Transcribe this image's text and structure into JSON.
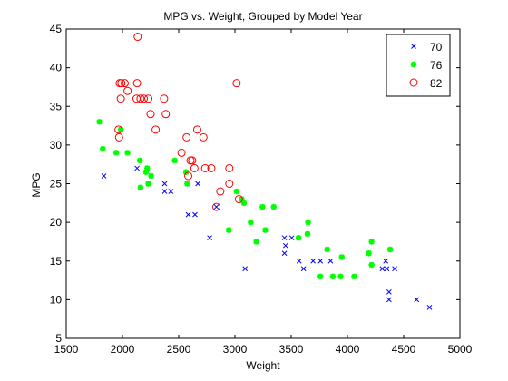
{
  "chart_data": {
    "type": "scatter",
    "title": "MPG vs. Weight, Grouped by Model Year",
    "xlabel": "Weight",
    "ylabel": "MPG",
    "xlim": [
      1500,
      5000
    ],
    "ylim": [
      5,
      45
    ],
    "xticks": [
      1500,
      2000,
      2500,
      3000,
      3500,
      4000,
      4500,
      5000
    ],
    "yticks": [
      5,
      10,
      15,
      20,
      25,
      30,
      35,
      40,
      45
    ],
    "grid": false,
    "legend_position": "top-right",
    "series": [
      {
        "name": "70",
        "color": "#0000ff",
        "marker": "x",
        "points": [
          [
            1835,
            26
          ],
          [
            2130,
            27
          ],
          [
            2375,
            25
          ],
          [
            2375,
            24
          ],
          [
            2430,
            24
          ],
          [
            2585,
            21
          ],
          [
            2645,
            21
          ],
          [
            2670,
            25
          ],
          [
            2775,
            18
          ],
          [
            2835,
            22
          ],
          [
            3090,
            14
          ],
          [
            3440,
            16
          ],
          [
            3440,
            18
          ],
          [
            3450,
            17
          ],
          [
            3505,
            18
          ],
          [
            3570,
            15
          ],
          [
            3610,
            14
          ],
          [
            3695,
            15
          ],
          [
            3760,
            15
          ],
          [
            3850,
            15
          ],
          [
            4310,
            14
          ],
          [
            4340,
            15
          ],
          [
            4350,
            14
          ],
          [
            4370,
            11
          ],
          [
            4370,
            10
          ],
          [
            4420,
            14
          ],
          [
            4615,
            10
          ],
          [
            4730,
            9
          ]
        ]
      },
      {
        "name": "76",
        "color": "#00ff00",
        "marker": "*",
        "points": [
          [
            1795,
            33
          ],
          [
            1825,
            29.5
          ],
          [
            1945,
            29
          ],
          [
            1985,
            32
          ],
          [
            2045,
            29
          ],
          [
            2155,
            28
          ],
          [
            2160,
            24.5
          ],
          [
            2210,
            26.5
          ],
          [
            2220,
            27
          ],
          [
            2230,
            25
          ],
          [
            2255,
            26
          ],
          [
            2465,
            28
          ],
          [
            2565,
            26.5
          ],
          [
            2575,
            25
          ],
          [
            2945,
            19
          ],
          [
            3015,
            24
          ],
          [
            3060,
            23
          ],
          [
            3080,
            22.5
          ],
          [
            3140,
            20
          ],
          [
            3190,
            17.5
          ],
          [
            3245,
            22
          ],
          [
            3270,
            19
          ],
          [
            3345,
            22
          ],
          [
            3565,
            18
          ],
          [
            3650,
            20
          ],
          [
            3645,
            18.5
          ],
          [
            3760,
            13
          ],
          [
            3820,
            16.5
          ],
          [
            3870,
            13
          ],
          [
            3940,
            13
          ],
          [
            3950,
            15.5
          ],
          [
            4060,
            13
          ],
          [
            4190,
            16
          ],
          [
            4215,
            17.5
          ],
          [
            4215,
            14.5
          ],
          [
            4380,
            16.5
          ]
        ]
      },
      {
        "name": "82",
        "color": "#ff0000",
        "marker": "o",
        "points": [
          [
            1965,
            32
          ],
          [
            1970,
            31
          ],
          [
            1975,
            38
          ],
          [
            1985,
            36
          ],
          [
            1990,
            38
          ],
          [
            2020,
            38
          ],
          [
            2045,
            37
          ],
          [
            2125,
            36
          ],
          [
            2130,
            38
          ],
          [
            2135,
            44
          ],
          [
            2160,
            36
          ],
          [
            2190,
            36
          ],
          [
            2230,
            36
          ],
          [
            2250,
            34
          ],
          [
            2295,
            32
          ],
          [
            2370,
            36
          ],
          [
            2385,
            34
          ],
          [
            2525,
            29
          ],
          [
            2570,
            31
          ],
          [
            2585,
            26
          ],
          [
            2605,
            28
          ],
          [
            2620,
            28
          ],
          [
            2640,
            27
          ],
          [
            2665,
            32
          ],
          [
            2720,
            31
          ],
          [
            2735,
            27
          ],
          [
            2790,
            27
          ],
          [
            2835,
            22
          ],
          [
            2870,
            24
          ],
          [
            2950,
            27
          ],
          [
            2950,
            25
          ],
          [
            3015,
            38
          ],
          [
            3035,
            23
          ]
        ]
      }
    ]
  }
}
